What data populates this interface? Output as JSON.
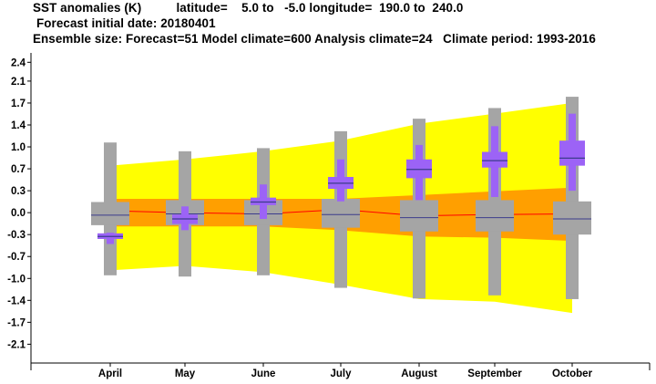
{
  "header": {
    "line1": "SST anomalies (K)          latitude=    5.0 to   -5.0 longitude=  190.0 to  240.0",
    "line2": "Forecast initial date: 20180401",
    "line3": "Ensemble size: Forecast=51 Model climate=600 Analysis climate=24   Climate period: 1993-2016"
  },
  "colors": {
    "model_clim_outer": "#ffff00",
    "model_clim_inner": "#ff9f00",
    "clim_median_line": "#ff0000",
    "forecast_box": "#a5a5a5",
    "forecast_box_inner": "#9c63f6",
    "median_line": "#3c3c8c"
  },
  "chart_data": {
    "type": "box",
    "title": "SST anomalies (K)",
    "categories": [
      "April",
      "May",
      "June",
      "July",
      "August",
      "September",
      "October"
    ],
    "ylim": [
      -2.4,
      2.55
    ],
    "yticks": [
      {
        "v": 2.4,
        "label": "2.4"
      },
      {
        "v": 2.1,
        "label": "2.1"
      },
      {
        "v": 1.75,
        "label": "1.7"
      },
      {
        "v": 1.4,
        "label": "1.4"
      },
      {
        "v": 1.05,
        "label": "1.0"
      },
      {
        "v": 0.7,
        "label": "0.7"
      },
      {
        "v": 0.35,
        "label": "0.3"
      },
      {
        "v": 0.0,
        "label": "0.0"
      },
      {
        "v": -0.35,
        "label": "-0.3"
      },
      {
        "v": -0.7,
        "label": "-0.7"
      },
      {
        "v": -1.05,
        "label": "-1.0"
      },
      {
        "v": -1.4,
        "label": "-1.4"
      },
      {
        "v": -1.75,
        "label": "-1.7"
      },
      {
        "v": -2.1,
        "label": "-2.1"
      }
    ],
    "model_climate": {
      "outer_upper": [
        0.75,
        0.85,
        0.98,
        1.15,
        1.42,
        1.58,
        1.75
      ],
      "outer_lower": [
        -0.92,
        -0.85,
        -0.95,
        -1.15,
        -1.38,
        -1.42,
        -1.6
      ],
      "inner_upper": [
        0.22,
        0.22,
        0.22,
        0.22,
        0.28,
        0.34,
        0.4
      ],
      "inner_lower": [
        -0.22,
        -0.22,
        -0.22,
        -0.28,
        -0.38,
        -0.4,
        -0.45
      ],
      "median": [
        0.03,
        0.0,
        -0.02,
        0.05,
        -0.05,
        -0.03,
        -0.02
      ]
    },
    "model_climate_boxes": [
      {
        "min": -1.0,
        "q1": -0.2,
        "median": -0.04,
        "q3": 0.17,
        "max": 1.12
      },
      {
        "min": -1.02,
        "q1": -0.2,
        "median": -0.02,
        "q3": 0.2,
        "max": 0.98
      },
      {
        "min": -1.0,
        "q1": -0.2,
        "median": -0.02,
        "q3": 0.2,
        "max": 1.03
      },
      {
        "min": -1.2,
        "q1": -0.24,
        "median": -0.03,
        "q3": 0.22,
        "max": 1.3
      },
      {
        "min": -1.37,
        "q1": -0.3,
        "median": -0.08,
        "q3": 0.2,
        "max": 1.5
      },
      {
        "min": -1.32,
        "q1": -0.3,
        "median": -0.08,
        "q3": 0.2,
        "max": 1.67
      },
      {
        "min": -1.38,
        "q1": -0.35,
        "median": -0.1,
        "q3": 0.18,
        "max": 1.85
      }
    ],
    "forecast": [
      {
        "min": -0.5,
        "p25": -0.42,
        "median": -0.38,
        "p75": -0.33,
        "max": -0.32
      },
      {
        "min": -0.28,
        "p25": -0.18,
        "median": -0.1,
        "p75": -0.03,
        "max": 0.1
      },
      {
        "min": -0.1,
        "p25": 0.12,
        "median": 0.17,
        "p75": 0.24,
        "max": 0.45
      },
      {
        "min": 0.18,
        "p25": 0.38,
        "median": 0.47,
        "p75": 0.57,
        "max": 0.85
      },
      {
        "min": 0.2,
        "p25": 0.55,
        "median": 0.69,
        "p75": 0.85,
        "max": 1.08
      },
      {
        "min": 0.25,
        "p25": 0.72,
        "median": 0.83,
        "p75": 0.97,
        "max": 1.38
      },
      {
        "min": 0.35,
        "p25": 0.75,
        "median": 0.87,
        "p75": 1.15,
        "max": 1.58
      }
    ]
  }
}
